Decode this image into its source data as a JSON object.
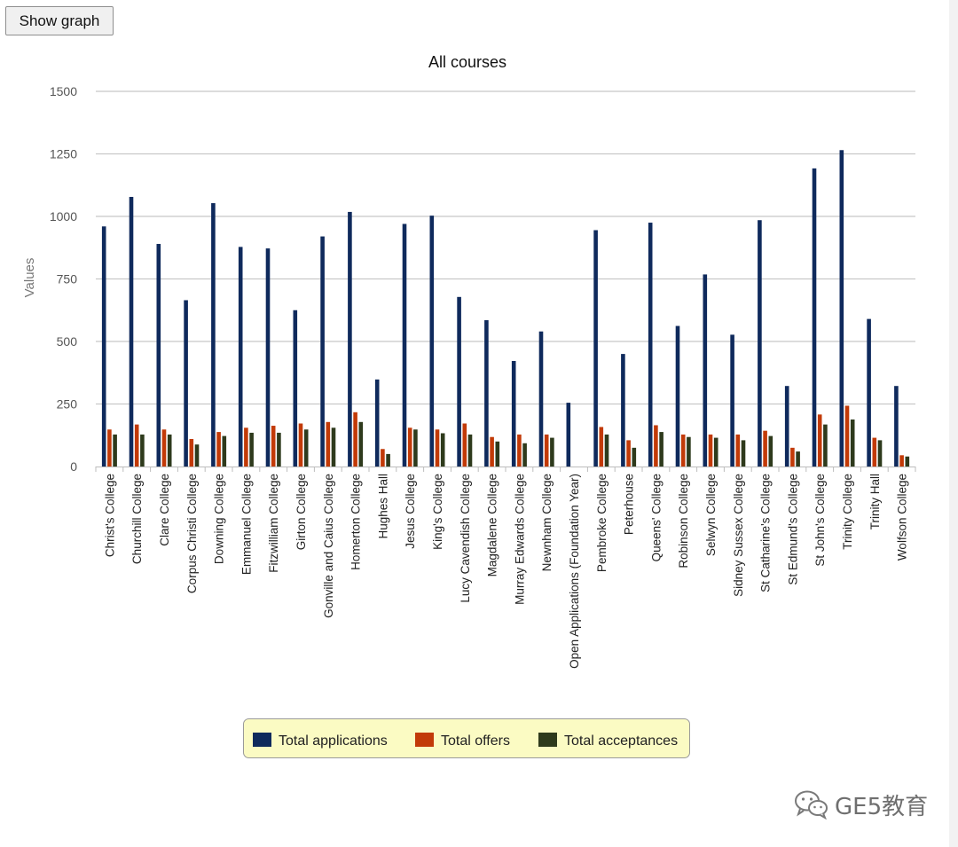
{
  "toolbar": {
    "show_graph_label": "Show graph"
  },
  "watermark": {
    "text": "GE5教育",
    "icon": "wechat-logo-icon"
  },
  "colors": {
    "applications": "#0f2a5c",
    "offers": "#c23a08",
    "acceptances": "#2e3a1c",
    "gridline": "#c8c8c8",
    "legend_bg": "#fbfbc3",
    "legend_border": "#9a9a9a"
  },
  "chart_data": {
    "type": "bar",
    "title": "All courses",
    "xlabel": "",
    "ylabel": "Values",
    "ylim": [
      0,
      1500
    ],
    "yticks": [
      0,
      250,
      500,
      750,
      1000,
      1250,
      1500
    ],
    "grid": true,
    "legend_position": "bottom",
    "categories": [
      "Christ's College",
      "Churchill College",
      "Clare College",
      "Corpus Christi College",
      "Downing College",
      "Emmanuel College",
      "Fitzwilliam College",
      "Girton College",
      "Gonville and Caius College",
      "Homerton College",
      "Hughes Hall",
      "Jesus College",
      "King's College",
      "Lucy Cavendish College",
      "Magdalene College",
      "Murray Edwards College",
      "Newnham College",
      "Open Applications (Foundation Year)",
      "Pembroke College",
      "Peterhouse",
      "Queens' College",
      "Robinson College",
      "Selwyn College",
      "Sidney Sussex College",
      "St Catharine's College",
      "St Edmund's College",
      "St John's College",
      "Trinity College",
      "Trinity Hall",
      "Wolfson College"
    ],
    "series": [
      {
        "name": "Total applications",
        "color": "#0f2a5c",
        "values": [
          960,
          1078,
          890,
          665,
          1053,
          878,
          872,
          625,
          920,
          1018,
          348,
          970,
          1003,
          678,
          585,
          422,
          540,
          255,
          945,
          450,
          975,
          562,
          768,
          527,
          985,
          322,
          1192,
          1265,
          590,
          322
        ]
      },
      {
        "name": "Total offers",
        "color": "#c23a08",
        "values": [
          148,
          168,
          148,
          110,
          138,
          155,
          163,
          172,
          178,
          217,
          70,
          155,
          148,
          172,
          118,
          128,
          128,
          0,
          158,
          105,
          165,
          128,
          128,
          128,
          143,
          75,
          208,
          243,
          115,
          45
        ]
      },
      {
        "name": "Total acceptances",
        "color": "#2e3a1c",
        "values": [
          128,
          128,
          128,
          88,
          122,
          135,
          135,
          148,
          155,
          178,
          50,
          148,
          133,
          128,
          100,
          93,
          115,
          0,
          128,
          75,
          138,
          118,
          115,
          105,
          122,
          60,
          168,
          188,
          105,
          40
        ]
      }
    ]
  }
}
